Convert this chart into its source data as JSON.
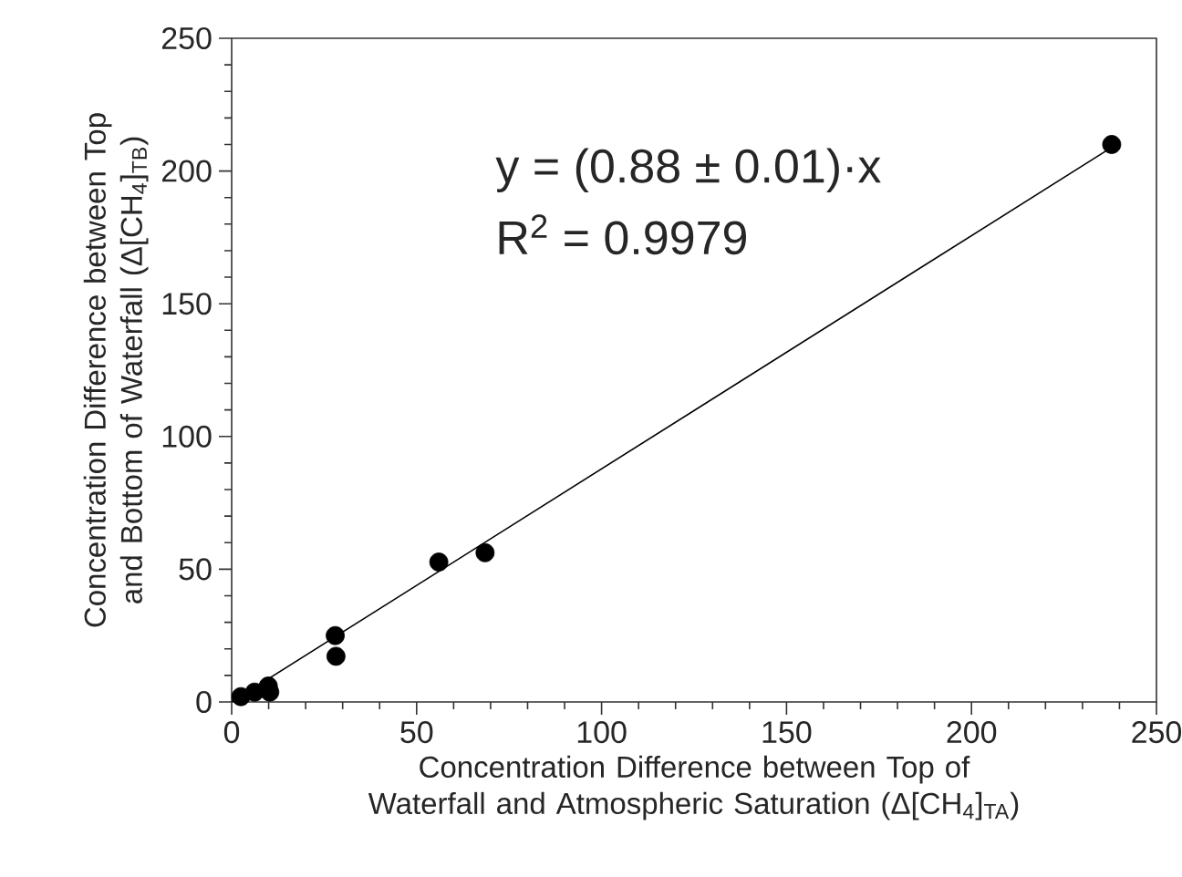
{
  "chart_data": {
    "type": "scatter",
    "xlabel": "Concentration Difference between Top of Waterfall and Atmospheric Saturation (Δ[CH$_{4}$]$_{TA}$)",
    "ylabel": "Concentration Difference between Top and Bottom of Waterfall (Δ[CH$_{4}$]$_{TB}$)",
    "xlim": [
      0,
      250
    ],
    "ylim": [
      0,
      250
    ],
    "xticks": [
      0,
      50,
      100,
      150,
      200,
      250
    ],
    "yticks": [
      0,
      50,
      100,
      150,
      200,
      250
    ],
    "grid": false,
    "series": [
      {
        "color": "#000000",
        "marker": "circle",
        "x": [
          2.5,
          6.2,
          9.9,
          10.3,
          28,
          28.2,
          56,
          68.5,
          237.9
        ],
        "values": [
          2,
          3.7,
          6,
          3.7,
          25,
          17.2,
          52.7,
          56.2,
          210
        ]
      },
      {
        "type": "line",
        "color": "#000000",
        "marker": "none",
        "line_style": "solid",
        "x": [
          0,
          238
        ],
        "values": [
          0,
          209
        ]
      }
    ],
    "annotations": [
      "y = (0.88 ± 0.01)·x",
      "R$^{2}$ = 0.9979"
    ]
  }
}
